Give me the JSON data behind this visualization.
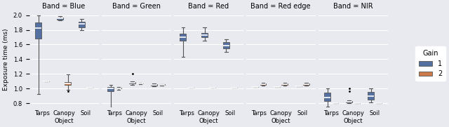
{
  "bands": [
    "Blue",
    "Green",
    "Red",
    "Red edge",
    "NIR"
  ],
  "categories": [
    "Tarps",
    "Canopy\nObject",
    "Soil"
  ],
  "gain1_color": "#5470a0",
  "gain2_color": "#cc7a4a",
  "background_color": "#e8eaf0",
  "title_fontsize": 8,
  "ylabel": "Exposure time (ms)",
  "ylim": [
    0.75,
    2.05
  ],
  "yticks": [
    0.8,
    1.0,
    1.2,
    1.4,
    1.6,
    1.8,
    2.0
  ],
  "legend_title": "Gain",
  "legend_labels": [
    "1",
    "2"
  ],
  "boxplot_data": {
    "Blue": {
      "gain1": {
        "Tarps": {
          "whislo": 0.93,
          "q1": 1.68,
          "med": 1.82,
          "q3": 1.9,
          "whishi": 2.0
        },
        "Canopy\nObject": {
          "whislo": 1.93,
          "q1": 1.94,
          "med": 1.96,
          "q3": 1.97,
          "whishi": 1.99,
          "fliers_lo": []
        },
        "Soil": {
          "whislo": 1.8,
          "q1": 1.83,
          "med": 1.88,
          "q3": 1.91,
          "whishi": 1.95
        }
      },
      "gain2": {
        "Tarps": {
          "whislo": 1.1,
          "q1": 1.1,
          "med": 1.1,
          "q3": 1.1,
          "whishi": 1.1
        },
        "Canopy\nObject": {
          "whislo": 0.98,
          "q1": 1.05,
          "med": 1.07,
          "q3": 1.09,
          "whishi": 1.19,
          "fliers_lo": [
            0.97
          ]
        },
        "Soil": {
          "whislo": 1.01,
          "q1": 1.01,
          "med": 1.01,
          "q3": 1.01,
          "whishi": 1.01
        }
      }
    },
    "Green": {
      "gain1": {
        "Tarps": {
          "whislo": 0.75,
          "q1": 0.97,
          "med": 1.0,
          "q3": 1.02,
          "whishi": 1.05
        },
        "Canopy\nObject": {
          "whislo": 1.05,
          "q1": 1.07,
          "med": 1.08,
          "q3": 1.09,
          "whishi": 1.1,
          "fliers_hi": [
            1.2
          ]
        },
        "Soil": {
          "whislo": 1.03,
          "q1": 1.04,
          "med": 1.05,
          "q3": 1.06,
          "whishi": 1.07
        }
      },
      "gain2": {
        "Tarps": {
          "whislo": 0.98,
          "q1": 1.0,
          "med": 1.0,
          "q3": 1.01,
          "whishi": 1.02
        },
        "Canopy\nObject": {
          "whislo": 1.06,
          "q1": 1.07,
          "med": 1.07,
          "q3": 1.07,
          "whishi": 1.08
        },
        "Soil": {
          "whislo": 1.04,
          "q1": 1.05,
          "med": 1.05,
          "q3": 1.06,
          "whishi": 1.06
        }
      }
    },
    "Red": {
      "gain1": {
        "Tarps": {
          "whislo": 1.43,
          "q1": 1.65,
          "med": 1.7,
          "q3": 1.75,
          "whishi": 1.83
        },
        "Canopy\nObject": {
          "whislo": 1.65,
          "q1": 1.7,
          "med": 1.73,
          "q3": 1.76,
          "whishi": 1.83
        },
        "Soil": {
          "whislo": 1.5,
          "q1": 1.55,
          "med": 1.59,
          "q3": 1.63,
          "whishi": 1.67
        }
      },
      "gain2": {
        "Tarps": {
          "whislo": 1.01,
          "q1": 1.01,
          "med": 1.01,
          "q3": 1.01,
          "whishi": 1.01
        },
        "Canopy\nObject": {
          "whislo": 1.01,
          "q1": 1.01,
          "med": 1.01,
          "q3": 1.01,
          "whishi": 1.01
        },
        "Soil": {
          "whislo": 1.01,
          "q1": 1.01,
          "med": 1.01,
          "q3": 1.01,
          "whishi": 1.01
        }
      }
    },
    "Red edge": {
      "gain1": {
        "Tarps": {
          "whislo": 1.02,
          "q1": 1.02,
          "med": 1.02,
          "q3": 1.02,
          "whishi": 1.02
        },
        "Canopy\nObject": {
          "whislo": 1.02,
          "q1": 1.02,
          "med": 1.02,
          "q3": 1.02,
          "whishi": 1.02
        },
        "Soil": {
          "whislo": 1.03,
          "q1": 1.03,
          "med": 1.03,
          "q3": 1.03,
          "whishi": 1.03
        }
      },
      "gain2": {
        "Tarps": {
          "whislo": 1.04,
          "q1": 1.05,
          "med": 1.06,
          "q3": 1.07,
          "whishi": 1.08
        },
        "Canopy\nObject": {
          "whislo": 1.04,
          "q1": 1.05,
          "med": 1.06,
          "q3": 1.07,
          "whishi": 1.08
        },
        "Soil": {
          "whislo": 1.04,
          "q1": 1.05,
          "med": 1.06,
          "q3": 1.07,
          "whishi": 1.08
        }
      }
    },
    "NIR": {
      "gain1": {
        "Tarps": {
          "whislo": 0.76,
          "q1": 0.83,
          "med": 0.88,
          "q3": 0.95,
          "whishi": 1.0
        },
        "Canopy\nObject": {
          "whislo": 0.8,
          "q1": 0.81,
          "med": 0.82,
          "q3": 0.83,
          "whishi": 0.84,
          "fliers_hi": [
            0.97,
            1.0
          ]
        },
        "Soil": {
          "whislo": 0.81,
          "q1": 0.85,
          "med": 0.9,
          "q3": 0.96,
          "whishi": 1.0
        }
      },
      "gain2": {
        "Tarps": {
          "whislo": 0.8,
          "q1": 0.8,
          "med": 0.8,
          "q3": 0.8,
          "whishi": 0.8
        },
        "Canopy\nObject": {
          "whislo": 0.8,
          "q1": 0.8,
          "med": 0.8,
          "q3": 0.8,
          "whishi": 0.8
        },
        "Soil": {
          "whislo": 0.8,
          "q1": 0.8,
          "med": 0.8,
          "q3": 0.8,
          "whishi": 0.8
        }
      }
    }
  }
}
